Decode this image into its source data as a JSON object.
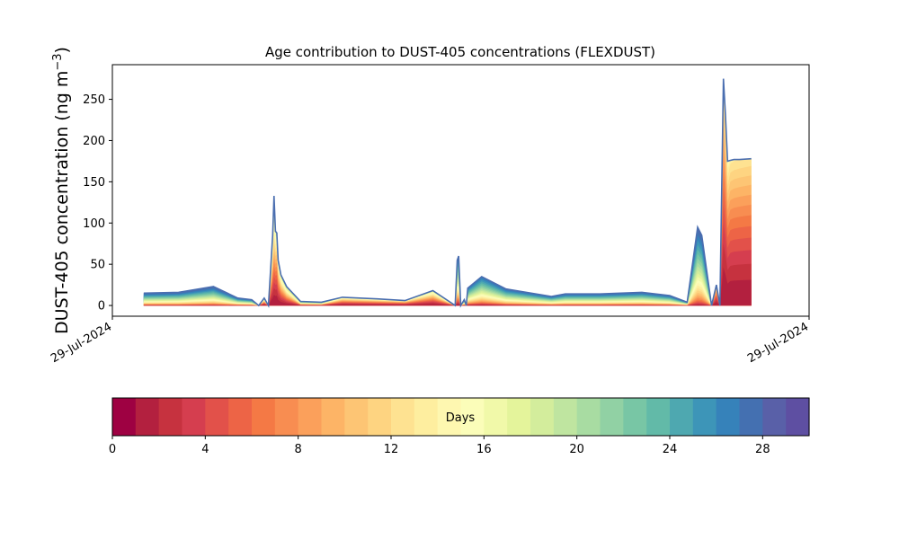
{
  "chart_data": {
    "type": "area",
    "title": "Age contribution to DUST-405 concentrations (FLEXDUST)",
    "ylabel": "DUST-405 concentration (ng m",
    "ylabel_sup": "−3",
    "ylabel_close": ")",
    "xlabel": "",
    "x_tick_labels": [
      "29-Jul-2024",
      "29-Jul-2024"
    ],
    "ylim": [
      -13,
      292
    ],
    "y_ticks": [
      0,
      50,
      100,
      150,
      200,
      250
    ],
    "grid": false,
    "legend": "colorbar-bottom",
    "x_range": [
      0,
      1
    ],
    "x": [
      0.045,
      0.095,
      0.145,
      0.18,
      0.2,
      0.21,
      0.218,
      0.224,
      0.23,
      0.232,
      0.234,
      0.236,
      0.238,
      0.242,
      0.25,
      0.27,
      0.3,
      0.33,
      0.38,
      0.42,
      0.46,
      0.492,
      0.495,
      0.497,
      0.5,
      0.505,
      0.508,
      0.51,
      0.53,
      0.565,
      0.63,
      0.65,
      0.7,
      0.76,
      0.8,
      0.825,
      0.84,
      0.846,
      0.86,
      0.867,
      0.872,
      0.877,
      0.88,
      0.883,
      0.887,
      0.892,
      0.9,
      0.917
    ],
    "total": [
      15,
      16,
      23,
      9,
      7,
      0,
      9,
      0,
      85,
      133,
      90,
      88,
      55,
      37,
      23,
      5,
      4,
      10,
      8,
      6,
      18,
      0,
      55,
      60,
      0,
      7,
      0,
      21,
      35,
      20,
      11,
      14,
      14,
      16,
      12,
      4,
      95,
      85,
      0,
      25,
      0,
      275,
      230,
      175,
      176,
      177,
      177,
      178
    ],
    "young_fraction": [
      0.02,
      0.02,
      0.02,
      0.03,
      0.04,
      0.5,
      0.45,
      0.5,
      0.48,
      0.42,
      0.55,
      0.58,
      0.55,
      0.5,
      0.45,
      0.2,
      0.2,
      0.55,
      0.55,
      0.6,
      0.5,
      0.5,
      0.12,
      0.1,
      0.5,
      0.1,
      0.5,
      0.08,
      0.08,
      0.05,
      0.04,
      0.04,
      0.04,
      0.04,
      0.04,
      0.04,
      0.03,
      0.03,
      0.5,
      0.7,
      0.5,
      0.72,
      0.7,
      0.65,
      0.72,
      0.73,
      0.74,
      0.75
    ],
    "colorbar": {
      "label": "Days",
      "min": 0,
      "max": 30,
      "tick_values": [
        0,
        4,
        8,
        12,
        16,
        20,
        24,
        28
      ],
      "tick_labels": [
        "0",
        "4",
        "8",
        "12",
        "16",
        "20",
        "24",
        "28"
      ],
      "colors": [
        "#9e0142",
        "#b3203f",
        "#c6323f",
        "#d53e4f",
        "#e2514a",
        "#ed6446",
        "#f47945",
        "#f88d51",
        "#fba05b",
        "#fdb466",
        "#fdc574",
        "#fed481",
        "#fee291",
        "#feee9f",
        "#fef7b0",
        "#fbfdb9",
        "#f1f9a9",
        "#e4f49b",
        "#d3ed9c",
        "#bfe5a0",
        "#a8dca2",
        "#91d1a4",
        "#78c6a5",
        "#62baa8",
        "#4ea8b0",
        "#3d95b8",
        "#3682ba",
        "#4470b1",
        "#5960a8",
        "#5e4fa2"
      ]
    }
  }
}
